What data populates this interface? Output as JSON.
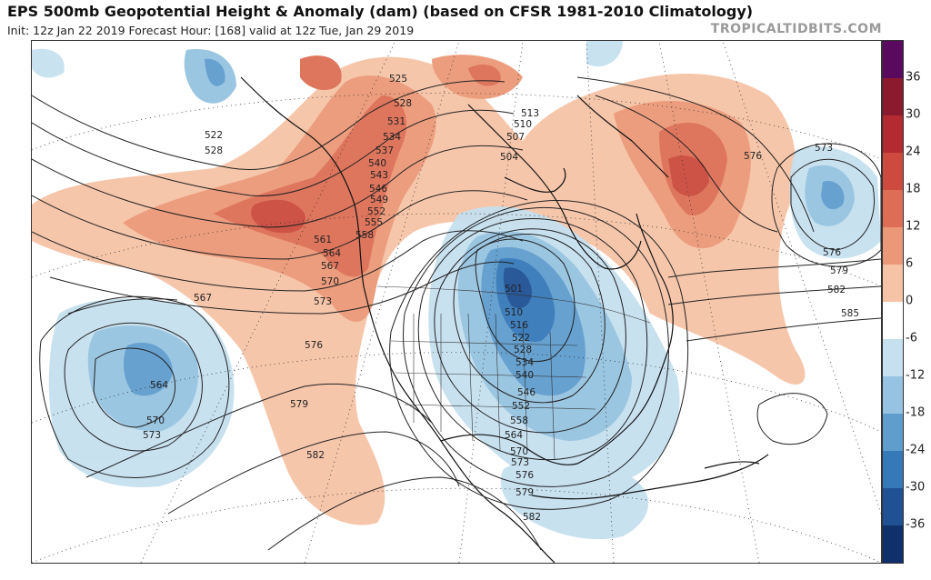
{
  "header": {
    "title": "EPS 500mb Geopotential Height & Anomaly (dam) (based on CFSR 1981-2010 Climatology)",
    "subtitle": "Init: 12z Jan 22 2019   Forecast Hour: [168]   valid at 12z Tue, Jan 29 2019",
    "brand": "TROPICALTIDBITS.COM"
  },
  "colorbar": {
    "ticks": [
      "36",
      "30",
      "24",
      "18",
      "12",
      "6",
      "0",
      "-6",
      "-12",
      "-18",
      "-24",
      "-30",
      "-36"
    ],
    "colors": [
      "#5a0a5e",
      "#8b1a2e",
      "#b32a30",
      "#cc4a3e",
      "#dd6e55",
      "#eb9878",
      "#f6c3a6",
      "#ffffff",
      "#c6e0ef",
      "#96c3e1",
      "#5f9dcd",
      "#3579b8",
      "#1f5194",
      "#10306b"
    ]
  },
  "map": {
    "contour_labels": [
      "522",
      "528",
      "525",
      "528",
      "531",
      "534",
      "537",
      "540",
      "543",
      "546",
      "549",
      "552",
      "555",
      "558",
      "561",
      "564",
      "567",
      "570",
      "573",
      "576",
      "579",
      "582",
      "585",
      "513",
      "510",
      "507",
      "504",
      "567",
      "564",
      "570",
      "573",
      "576",
      "579",
      "582",
      "501",
      "510",
      "516",
      "522",
      "528",
      "534",
      "540",
      "546",
      "552",
      "558",
      "564",
      "570",
      "573",
      "576",
      "579",
      "582",
      "573",
      "576",
      "579",
      "582",
      "585",
      "576"
    ]
  }
}
